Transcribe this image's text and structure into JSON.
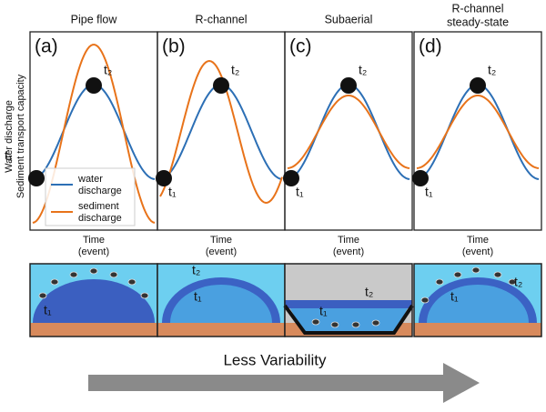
{
  "panels": [
    {
      "title": [
        "Pipe flow"
      ],
      "label": "(a)",
      "t1": "t₁",
      "t2": "t₂",
      "x_label": [
        "Time",
        "(event)"
      ]
    },
    {
      "title": [
        "R-channel"
      ],
      "label": "(b)",
      "t1": "t₁",
      "t2": "t₂",
      "x_label": [
        "Time",
        "(event)"
      ]
    },
    {
      "title": [
        "Subaerial"
      ],
      "label": "(c)",
      "t1": "t₁",
      "t2": "t₂",
      "x_label": [
        "Time",
        "(event)"
      ]
    },
    {
      "title": [
        "R-channel",
        "steady-state"
      ],
      "label": "(d)",
      "t1": "t₁",
      "t2": "t₂",
      "x_label": [
        "Time",
        "(event)"
      ]
    }
  ],
  "y_label": [
    "Water discharge",
    "Sediment transport capacity"
  ],
  "legend": [
    {
      "lines": [
        "water",
        "discharge"
      ]
    },
    {
      "lines": [
        "sediment",
        "discharge"
      ]
    }
  ],
  "sketches": [
    {
      "t1": "t₁",
      "t2": null
    },
    {
      "t1": "t₁",
      "t2": "t₂"
    },
    {
      "t1": "t₁",
      "t2": "t₂"
    },
    {
      "t1": "t₁",
      "t2": "t₂"
    }
  ],
  "arrow_label": "Less Variability"
}
